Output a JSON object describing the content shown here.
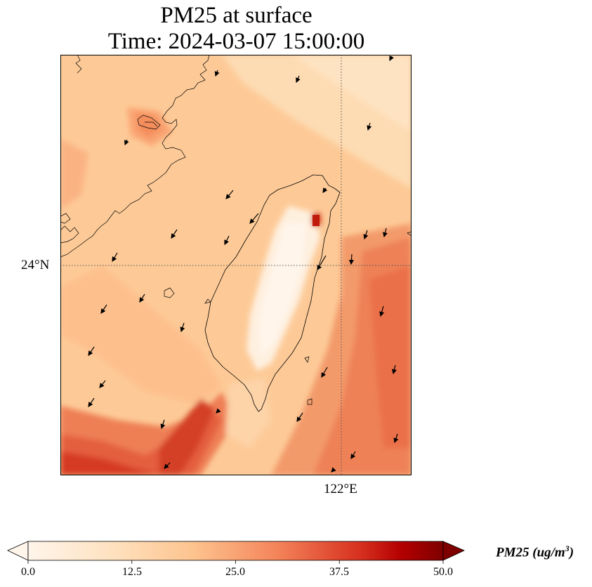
{
  "title": {
    "line1": "PM25 at surface",
    "line2": "Time: 2024-03-07 15:00:00"
  },
  "axes": {
    "lat_tick_label": "24°N",
    "lon_tick_label": "122°E"
  },
  "colorbar": {
    "label_base": "PM25 (ug/m",
    "label_exp": "3",
    "label_close": ")",
    "ticks": [
      "0.0",
      "12.5",
      "25.0",
      "37.5",
      "50.0"
    ],
    "min": 0,
    "max": 50,
    "extend": "both",
    "colors": [
      "#fff5eb",
      "#fdd9b0",
      "#fdae6b",
      "#f16913",
      "#c81c0d",
      "#7f0000"
    ]
  },
  "map": {
    "projection": "PlateCarree",
    "gridlines": "dotted",
    "features": [
      "coastline-taiwan",
      "coastline-fujian",
      "wind-vectors"
    ],
    "colormap": "OrRd"
  }
}
